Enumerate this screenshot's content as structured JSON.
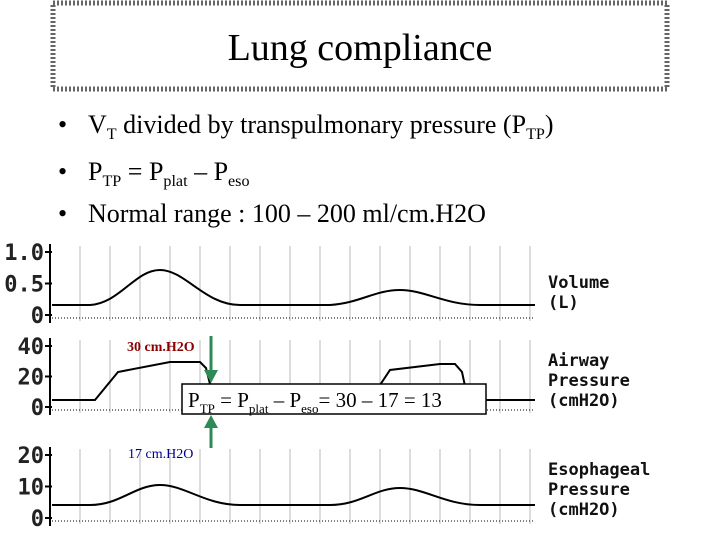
{
  "title": "Lung compliance",
  "bullets": [
    [
      "V",
      "T",
      " divided by transpulmonary pressure (P",
      "TP",
      ")"
    ],
    [
      "P",
      "TP",
      " = P",
      "plat",
      " – P",
      "eso"
    ],
    [
      "Normal range : 100 – 200 ml/cm.H2O"
    ]
  ],
  "panels": [
    {
      "ylim": [
        0,
        1
      ],
      "yticks": [
        {
          "value": 1,
          "label": "1.0"
        },
        0.5,
        0
      ],
      "label": [
        "Volume",
        "(L)"
      ]
    },
    {
      "ylim": [
        0,
        40
      ],
      "yticks": [
        40,
        20,
        0
      ],
      "label": [
        "Airway",
        "Pressure",
        "(cmH2O)"
      ]
    },
    {
      "ylim": [
        0,
        20
      ],
      "yticks": [
        20,
        10,
        0
      ],
      "label": [
        "Esophageal",
        "Pressure",
        "(cmH2O)"
      ]
    }
  ],
  "annotations": {
    "airway": "30 cm.H2O",
    "esophageal": "17 cm.H2O",
    "equation": [
      "P",
      "TP",
      " = P",
      "plat",
      " – P",
      "eso",
      "= 30 – 17 = 13"
    ]
  }
}
